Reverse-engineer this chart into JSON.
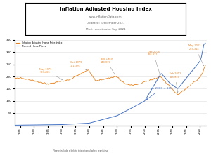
{
  "title": "Inflation Adjusted Housing Index",
  "subtitle1": "www.InflationData.com",
  "subtitle2": "Updated:  December 2021",
  "subtitle3": "Most recent data: Sep 2021",
  "footer": "Please include a link to this original when reprinting",
  "legend_orange": "Inflation Adjusted Home Price Index",
  "legend_blue": "Nominal Home Prices",
  "orange_color": "#E8821E",
  "blue_color": "#4472C4",
  "bg_color": "#FFFFFF",
  "ylim": [
    0,
    350
  ],
  "yticks": [
    50,
    100,
    150,
    200,
    250,
    300,
    350
  ],
  "year_start": 1953,
  "year_end": 2022
}
